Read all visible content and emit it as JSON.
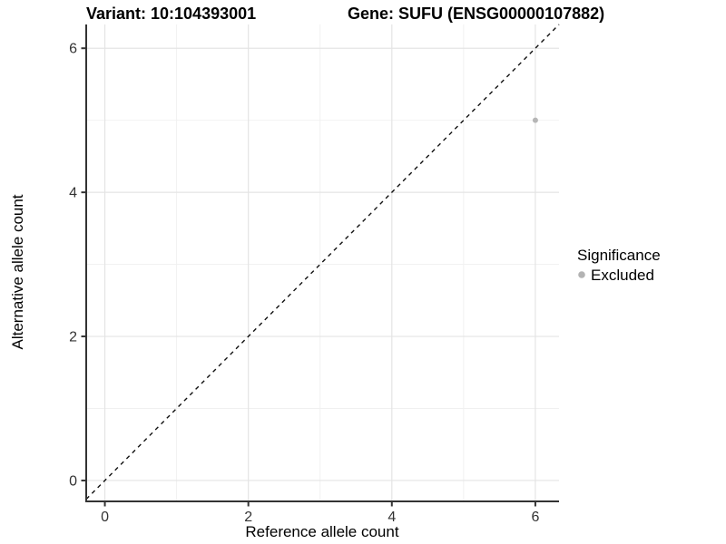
{
  "chart_data": {
    "type": "scatter",
    "title_left": "Variant: 10:104393001",
    "title_right": "Gene: SUFU (ENSG00000107882)",
    "xlabel": "Reference allele count",
    "ylabel": "Alternative allele count",
    "xlim": [
      -0.26,
      6.33
    ],
    "ylim": [
      -0.29,
      6.33
    ],
    "xticks": [
      0,
      2,
      4,
      6
    ],
    "yticks": [
      0,
      2,
      4,
      6
    ],
    "minor_xticks": [
      1,
      3,
      5
    ],
    "minor_yticks": [
      1,
      3,
      5
    ],
    "grid": true,
    "abline": {
      "slope": 1,
      "intercept": 0,
      "style": "dashed",
      "color": "#111111"
    },
    "points": [
      {
        "x": 6,
        "y": 5,
        "series": "Excluded"
      }
    ],
    "series": [
      {
        "name": "Excluded",
        "color": "#b6b6b6"
      }
    ],
    "legend": {
      "title": "Significance",
      "position": "right",
      "items": [
        {
          "label": "Excluded",
          "color": "#b3b3b3"
        }
      ]
    },
    "colors": {
      "background": "#ffffff",
      "axis_line": "#333333",
      "grid_major": "#e4e4e4",
      "grid_minor": "#f0f0f0",
      "tick_mark": "#333333",
      "tick_text": "#333333",
      "point": "#b6b6b6"
    }
  }
}
